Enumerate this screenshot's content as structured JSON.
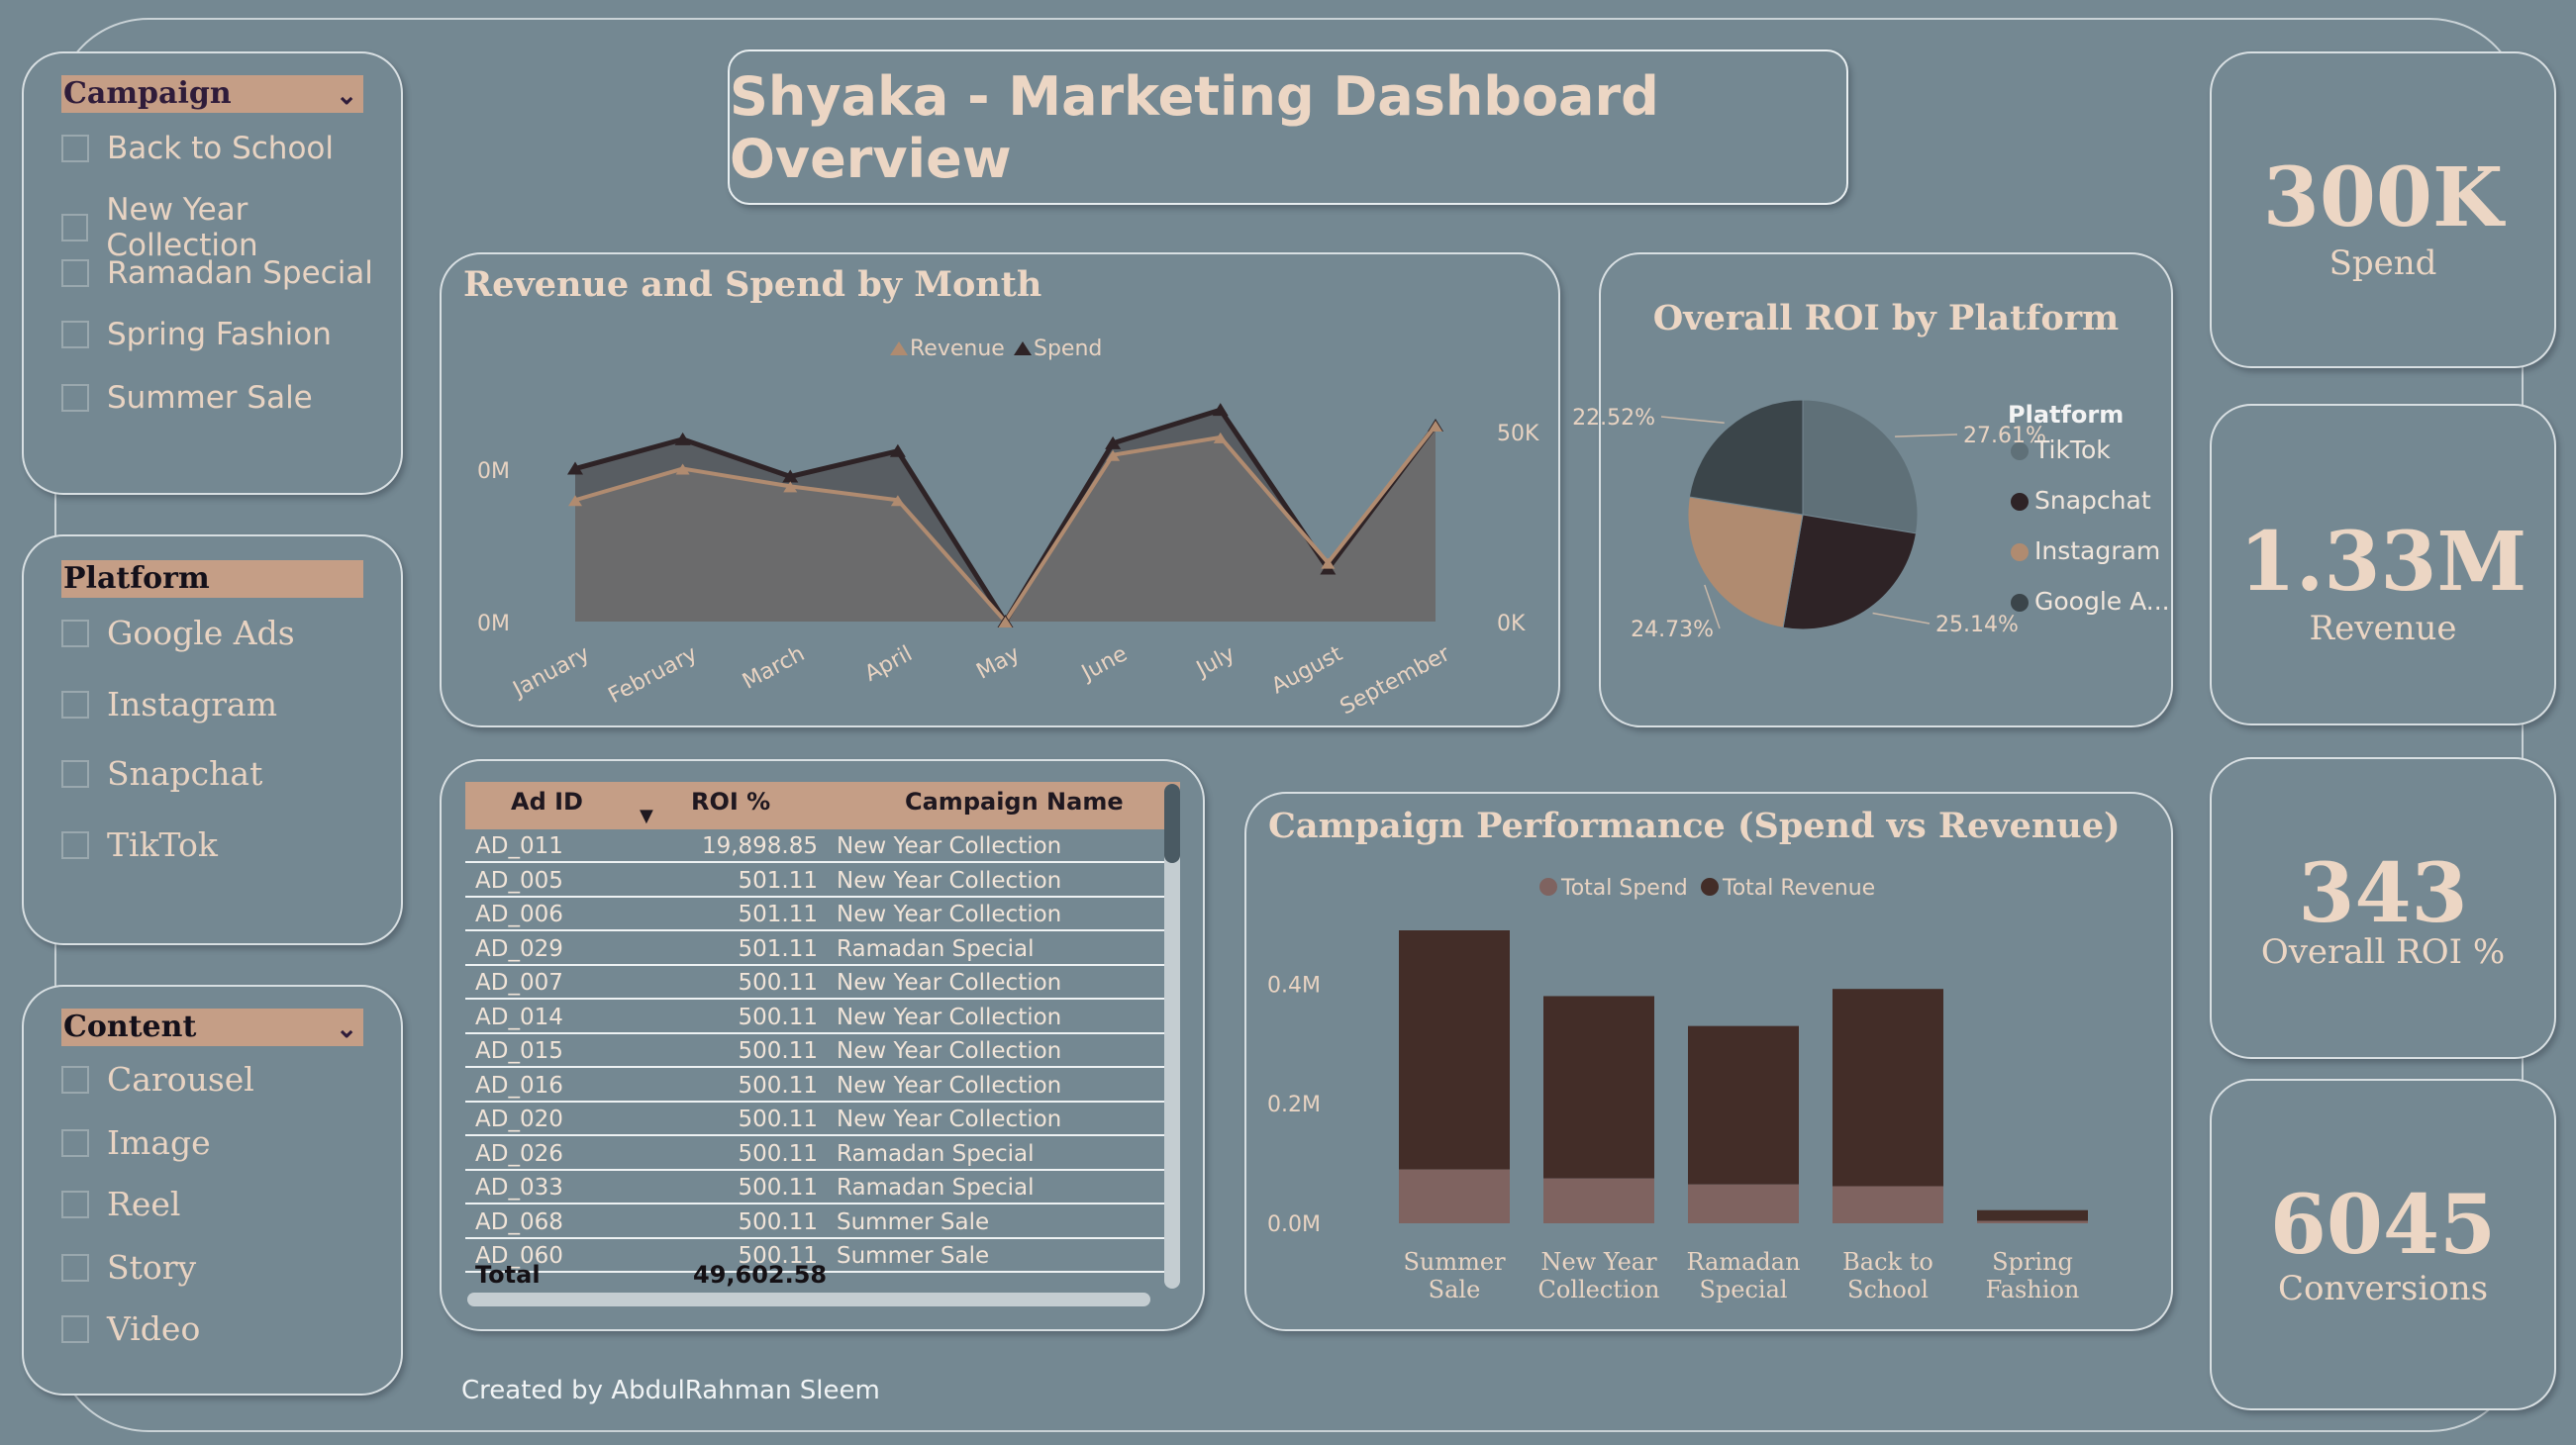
{
  "title": "Shyaka - Marketing Dashboard Overview",
  "footer": "Created by AbdulRahman Sleem",
  "slicers": {
    "campaign": {
      "header": "Campaign",
      "items": [
        "Back to School",
        "New Year Collection",
        "Ramadan Special",
        "Spring Fashion",
        "Summer Sale"
      ]
    },
    "platform": {
      "header": "Platform",
      "items": [
        "Google Ads",
        "Instagram",
        "Snapchat",
        "TikTok"
      ]
    },
    "content": {
      "header": "Content",
      "items": [
        "Carousel",
        "Image",
        "Reel",
        "Story",
        "Video"
      ]
    }
  },
  "kpis": [
    {
      "value": "300K",
      "label": "Spend"
    },
    {
      "value": "1.33M",
      "label": "Revenue"
    },
    {
      "value": "343",
      "label": "Overall ROI %"
    },
    {
      "value": "6045",
      "label": "Conversions"
    }
  ],
  "table": {
    "headers": [
      "Ad ID",
      "ROI %",
      "Campaign Name"
    ],
    "rows": [
      [
        "AD_011",
        "19,898.85",
        "New Year Collection"
      ],
      [
        "AD_005",
        "501.11",
        "New Year Collection"
      ],
      [
        "AD_006",
        "501.11",
        "New Year Collection"
      ],
      [
        "AD_029",
        "501.11",
        "Ramadan Special"
      ],
      [
        "AD_007",
        "500.11",
        "New Year Collection"
      ],
      [
        "AD_014",
        "500.11",
        "New Year Collection"
      ],
      [
        "AD_015",
        "500.11",
        "New Year Collection"
      ],
      [
        "AD_016",
        "500.11",
        "New Year Collection"
      ],
      [
        "AD_020",
        "500.11",
        "New Year Collection"
      ],
      [
        "AD_026",
        "500.11",
        "Ramadan Special"
      ],
      [
        "AD_033",
        "500.11",
        "Ramadan Special"
      ],
      [
        "AD_068",
        "500.11",
        "Summer Sale"
      ],
      [
        "AD_060",
        "500.11",
        "Summer Sale"
      ]
    ],
    "total_label": "Total",
    "total_value": "49,602.58"
  },
  "chart_data": [
    {
      "type": "area",
      "title": "Revenue and Spend by Month",
      "categories": [
        "January",
        "February",
        "March",
        "April",
        "May",
        "June",
        "July",
        "August",
        "September"
      ],
      "series": [
        {
          "name": "Revenue",
          "color": "#b08b70",
          "values": [
            0.62,
            0.78,
            0.69,
            0.62,
            0.0,
            0.85,
            0.94,
            0.3,
            1.0
          ]
        },
        {
          "name": "Spend",
          "color": "#2e2326",
          "values": [
            0.78,
            0.93,
            0.74,
            0.87,
            0.0,
            0.91,
            1.08,
            0.27,
            1.0
          ]
        }
      ],
      "y_left_ticks": [
        "0M",
        "0M"
      ],
      "y_right_ticks": [
        "50K",
        "0K"
      ],
      "legend": "top-center"
    },
    {
      "type": "pie",
      "title": "Overall ROI by Platform",
      "legend_title": "Platform",
      "slices": [
        {
          "label": "TikTok",
          "value": 27.61,
          "pct_label": "27.61%",
          "color": "#5f7078"
        },
        {
          "label": "Snapchat",
          "value": 25.14,
          "pct_label": "25.14%",
          "color": "#2e2326"
        },
        {
          "label": "Instagram",
          "value": 24.73,
          "pct_label": "24.73%",
          "color": "#b08b70"
        },
        {
          "label": "Google A...",
          "value": 22.52,
          "pct_label": "22.52%",
          "color": "#3b454a"
        }
      ],
      "legend": "right"
    },
    {
      "type": "bar",
      "title": "Campaign Performance (Spend vs Revenue)",
      "categories": [
        [
          "Summer",
          "Sale"
        ],
        [
          "New Year",
          "Collection"
        ],
        [
          "Ramadan",
          "Special"
        ],
        [
          "Back to",
          "School"
        ],
        [
          "Spring",
          "Fashion"
        ]
      ],
      "series": [
        {
          "name": "Total Spend",
          "color": "#7f6360",
          "values": [
            0.09,
            0.075,
            0.065,
            0.062,
            0.004
          ]
        },
        {
          "name": "Total Revenue",
          "color": "#432d28",
          "values": [
            0.4,
            0.305,
            0.265,
            0.33,
            0.018
          ]
        }
      ],
      "y_ticks": [
        "0.0M",
        "0.2M",
        "0.4M"
      ],
      "ylim": [
        0,
        0.49
      ],
      "stacked": true,
      "legend": "top-center"
    }
  ]
}
